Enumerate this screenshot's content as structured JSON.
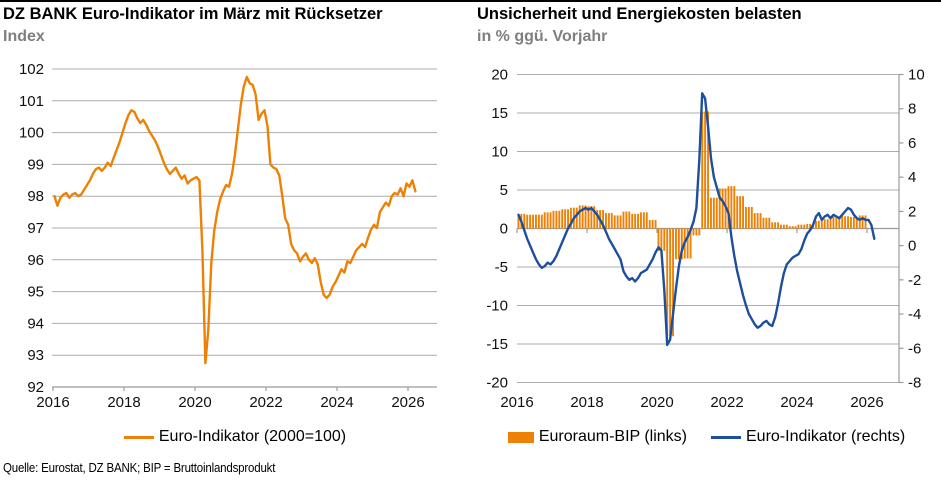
{
  "colors": {
    "orange": "#ED8106",
    "blue": "#1D4F9C",
    "grid": "#ACACAC",
    "axis": "#9B9B9B",
    "subtitle_gray": "#7F7F7F"
  },
  "source_note": "Quelle: Eurostat, DZ BANK; BIP = Bruttoinlandsprodukt",
  "chart_data": [
    {
      "type": "line",
      "title": "DZ BANK Euro-Indikator im März mit Rücksetzer",
      "subtitle": "Index",
      "x_ticks": [
        2016,
        2018,
        2020,
        2022,
        2024,
        2026
      ],
      "y_ticks": [
        92,
        93,
        94,
        95,
        96,
        97,
        98,
        99,
        100,
        101,
        102
      ],
      "ylim": [
        92,
        102
      ],
      "grid": true,
      "legend": [
        {
          "label": "Euro-Indikator (2000=100)",
          "style": "line",
          "color": "#ED8106"
        }
      ],
      "series": [
        {
          "name": "Euro-Indikator (2000=100)",
          "cadence": "monthly",
          "start": "2016-01",
          "end": "2026-03",
          "values": [
            98.0,
            97.7,
            97.95,
            98.05,
            98.1,
            97.95,
            98.05,
            98.1,
            98.0,
            98.05,
            98.2,
            98.35,
            98.5,
            98.7,
            98.85,
            98.9,
            98.8,
            98.9,
            99.05,
            98.95,
            99.2,
            99.45,
            99.7,
            100.0,
            100.3,
            100.55,
            100.7,
            100.65,
            100.45,
            100.3,
            100.4,
            100.25,
            100.05,
            99.9,
            99.75,
            99.55,
            99.3,
            99.05,
            98.85,
            98.7,
            98.8,
            98.9,
            98.7,
            98.55,
            98.65,
            98.4,
            98.5,
            98.55,
            98.6,
            98.5,
            96.3,
            92.75,
            93.8,
            95.9,
            96.9,
            97.5,
            97.9,
            98.15,
            98.35,
            98.3,
            98.7,
            99.3,
            100.1,
            100.9,
            101.45,
            101.75,
            101.55,
            101.5,
            101.2,
            100.4,
            100.6,
            100.7,
            100.2,
            99.0,
            98.9,
            98.85,
            98.65,
            98.0,
            97.3,
            97.1,
            96.5,
            96.3,
            96.2,
            95.95,
            96.1,
            96.2,
            96.0,
            95.9,
            96.05,
            95.85,
            95.3,
            94.9,
            94.8,
            94.9,
            95.15,
            95.3,
            95.5,
            95.7,
            95.6,
            95.95,
            95.9,
            96.1,
            96.3,
            96.4,
            96.5,
            96.4,
            96.7,
            96.95,
            97.1,
            97.0,
            97.5,
            97.65,
            97.8,
            97.7,
            98.0,
            98.1,
            98.05,
            98.25,
            98.0,
            98.4,
            98.3,
            98.5,
            98.15
          ]
        }
      ]
    },
    {
      "type": "bar+line",
      "title": "Unsicherheit und Energiekosten belasten",
      "subtitle": "in % ggü. Vorjahr",
      "x_ticks": [
        2016,
        2018,
        2020,
        2022,
        2024,
        2026
      ],
      "left_axis": {
        "ticks": [
          -20,
          -15,
          -10,
          -5,
          0,
          5,
          10,
          15,
          20
        ],
        "lim": [
          -20,
          20
        ]
      },
      "right_axis": {
        "ticks": [
          -8,
          -6,
          -4,
          -2,
          0,
          2,
          4,
          6,
          8,
          10
        ],
        "lim": [
          -8,
          10
        ]
      },
      "grid": true,
      "legend": [
        {
          "label": "Euroraum-BIP (links)",
          "style": "rect",
          "color": "#ED8106"
        },
        {
          "label": "Euro-Indikator (rechts)",
          "style": "line",
          "color": "#1D4F9C"
        }
      ],
      "series": [
        {
          "name": "Euroraum-BIP (links)",
          "type": "bar",
          "axis": "left",
          "cadence": "quarterly",
          "start": "2016-Q1",
          "end": "2025-Q4",
          "values": [
            1.9,
            1.8,
            1.8,
            2.1,
            2.3,
            2.5,
            2.7,
            3.0,
            2.9,
            2.4,
            2.0,
            1.7,
            2.2,
            1.9,
            2.1,
            1.1,
            -2.9,
            -14.0,
            -4.0,
            -3.9,
            -0.9,
            15.2,
            4.0,
            5.2,
            5.5,
            4.2,
            2.8,
            2.0,
            1.4,
            0.8,
            0.5,
            0.3,
            0.5,
            0.6,
            1.0,
            1.2,
            1.5,
            1.6,
            1.5,
            1.7
          ]
        },
        {
          "name": "Euro-Indikator (rechts)",
          "type": "line",
          "axis": "right",
          "cadence": "monthly",
          "start": "2016-01",
          "end": "2026-03",
          "values": [
            1.8,
            1.4,
            0.9,
            0.4,
            0.0,
            -0.4,
            -0.8,
            -1.1,
            -1.3,
            -1.2,
            -1.0,
            -1.1,
            -0.9,
            -0.6,
            -0.2,
            0.2,
            0.6,
            1.0,
            1.3,
            1.6,
            1.8,
            2.0,
            2.1,
            2.2,
            2.1,
            2.2,
            2.0,
            1.8,
            1.5,
            1.2,
            0.8,
            0.4,
            0.1,
            -0.2,
            -0.5,
            -0.8,
            -1.5,
            -1.8,
            -2.0,
            -1.9,
            -2.1,
            -1.9,
            -1.6,
            -1.5,
            -1.4,
            -1.1,
            -0.8,
            -0.4,
            -0.1,
            -0.3,
            -2.6,
            -5.8,
            -5.5,
            -4.0,
            -2.5,
            -1.2,
            -0.3,
            0.2,
            0.5,
            0.9,
            1.4,
            2.2,
            5.0,
            8.9,
            8.6,
            7.0,
            5.1,
            4.0,
            3.4,
            2.8,
            2.6,
            2.3,
            1.9,
            0.5,
            -0.6,
            -1.5,
            -2.2,
            -2.9,
            -3.5,
            -4.0,
            -4.3,
            -4.6,
            -4.8,
            -4.7,
            -4.5,
            -4.4,
            -4.6,
            -4.7,
            -4.2,
            -3.4,
            -2.4,
            -1.6,
            -1.1,
            -0.9,
            -0.7,
            -0.6,
            -0.5,
            -0.2,
            0.3,
            0.7,
            0.9,
            1.2,
            1.7,
            1.9,
            1.5,
            1.7,
            1.8,
            1.6,
            1.8,
            1.7,
            1.6,
            1.8,
            2.0,
            2.2,
            2.1,
            1.8,
            1.6,
            1.5,
            1.6,
            1.5,
            1.5,
            1.2,
            0.4
          ]
        }
      ]
    }
  ]
}
